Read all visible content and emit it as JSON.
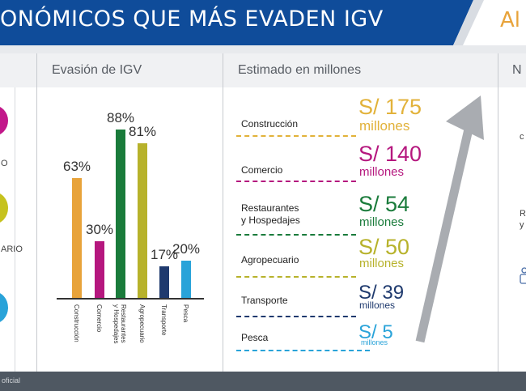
{
  "header": {
    "title": "ONÓMICOS QUE MÁS EVADEN IGV",
    "right_text": "Al",
    "title_bg": "#0f4c9a",
    "accent": "#e8a33a"
  },
  "columns": {
    "evasion": "Evasión de IGV",
    "estimado": "Estimado en millones",
    "right": "N"
  },
  "left_panel": {
    "fragments": [
      "O",
      "ARIO"
    ]
  },
  "evasion_chart": {
    "type": "bar",
    "categories": [
      "Construcción",
      "Comercio",
      "Restaurantes y Hospedajes",
      "Agropecuario",
      "Transporte",
      "Pesca"
    ],
    "cat_labels": [
      [
        "Construcción"
      ],
      [
        "Comercio"
      ],
      [
        "Restaurantes",
        "y Hospedajes"
      ],
      [
        "Agropecuario"
      ],
      [
        "Transporte"
      ],
      [
        "Pesca"
      ]
    ],
    "values": [
      63,
      30,
      88,
      81,
      17,
      20
    ],
    "labels": [
      "63%",
      "30%",
      "88%",
      "81%",
      "17%",
      "20%"
    ],
    "colors": [
      "#e8a33a",
      "#b5177e",
      "#1a7b3b",
      "#b7b22b",
      "#1f3a6e",
      "#29a3d9"
    ],
    "ylim": [
      0,
      100
    ]
  },
  "estimates": [
    {
      "sector": [
        "Construcción"
      ],
      "amount": "S/ 175",
      "unit": "millones",
      "color": "#e2b23a"
    },
    {
      "sector": [
        "Comercio"
      ],
      "amount": "S/ 140",
      "unit": "millones",
      "color": "#b5177e"
    },
    {
      "sector": [
        "Restaurantes",
        "y Hospedajes"
      ],
      "amount": "S/ 54",
      "unit": "millones",
      "color": "#1a7b3b"
    },
    {
      "sector": [
        "Agropecuario"
      ],
      "amount": "S/ 50",
      "unit": "millones",
      "color": "#b7b22b"
    },
    {
      "sector": [
        "Transporte"
      ],
      "amount": "S/ 39",
      "unit": "millones",
      "color": "#1f3a6e"
    },
    {
      "sector": [
        "Pesca"
      ],
      "amount": "S/ 5",
      "unit": "millones",
      "color": "#29a3d9"
    }
  ],
  "right_panel": {
    "fragments": [
      "c",
      "R",
      "y"
    ]
  },
  "footer": {
    "text": "oficial"
  }
}
